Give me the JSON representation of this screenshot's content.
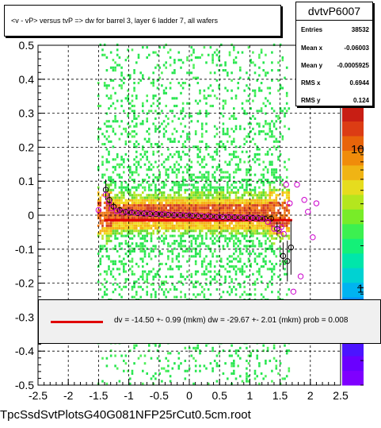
{
  "title": "<v - vP>     versus  tvP =>  dw for barrel 3, layer 6 ladder 7, all wafers",
  "stats": {
    "name": "dvtvP6007",
    "rows": [
      {
        "label": "Entries",
        "value": "38532"
      },
      {
        "label": "Mean x",
        "value": "-0.06003"
      },
      {
        "label": "Mean y",
        "value": "-0.0005925"
      },
      {
        "label": "RMS x",
        "value": "0.6944"
      },
      {
        "label": "RMS y",
        "value": "0.124"
      }
    ]
  },
  "fit_label": "dv =  -14.50 +-  0.99 (mkm) dw =  -29.67 +-  2.01 (mkm) prob = 0.008",
  "footer": "TpcSsdSvtPlotsG40G081NFP25rCut0.5cm.root",
  "colors": {
    "fit": "#e00000",
    "profile_black": "#000000",
    "profile_magenta": "#cc00cc"
  },
  "chart_data": {
    "type": "heatmap",
    "xlim": [
      -2.5,
      2.5
    ],
    "ylim": [
      -0.5,
      0.5
    ],
    "x_ticks": [
      "-2.5",
      "-2",
      "-1.5",
      "-1",
      "-0.5",
      "0",
      "0.5",
      "1",
      "1.5",
      "2",
      "2.5"
    ],
    "y_ticks": [
      "-0.5",
      "-0.4",
      "-0.3",
      "-0.2",
      "-0.1",
      "0",
      "0.1",
      "0.2",
      "0.3",
      "0.4",
      "0.5"
    ],
    "grid": true,
    "z_scale": "log",
    "z_ticks": [
      {
        "label": "1",
        "value": 1
      },
      {
        "label": "10",
        "value": 10
      }
    ],
    "z_range": [
      0.2,
      20
    ],
    "fit": {
      "x": [
        -1.4,
        1.7
      ],
      "y": [
        -0.0145,
        -0.0145
      ]
    },
    "profile_black": {
      "x": [
        -1.38,
        -1.32,
        -1.25,
        -1.15,
        -1.05,
        -0.95,
        -0.85,
        -0.75,
        -0.65,
        -0.55,
        -0.45,
        -0.35,
        -0.25,
        -0.15,
        -0.05,
        0.05,
        0.15,
        0.25,
        0.35,
        0.45,
        0.55,
        0.65,
        0.75,
        0.85,
        0.95,
        1.05,
        1.15,
        1.25,
        1.35,
        1.45,
        1.55,
        1.62,
        1.68
      ],
      "y": [
        0.075,
        0.045,
        0.025,
        0.015,
        0.01,
        0.008,
        0.006,
        0.005,
        0.004,
        0.003,
        0.002,
        0.001,
        0.0,
        0.0,
        -0.001,
        -0.002,
        -0.003,
        -0.004,
        -0.004,
        -0.005,
        -0.005,
        -0.006,
        -0.006,
        -0.007,
        -0.008,
        -0.008,
        -0.009,
        -0.01,
        -0.01,
        -0.04,
        -0.12,
        -0.135,
        -0.095
      ],
      "err": [
        0.03,
        0.02,
        0.012,
        0.006,
        0.004,
        0.003,
        0.003,
        0.002,
        0.002,
        0.002,
        0.002,
        0.002,
        0.002,
        0.002,
        0.002,
        0.002,
        0.002,
        0.002,
        0.002,
        0.002,
        0.002,
        0.002,
        0.002,
        0.003,
        0.003,
        0.003,
        0.004,
        0.005,
        0.008,
        0.02,
        0.04,
        0.06,
        0.08
      ]
    },
    "profile_magenta": {
      "x": [
        -1.5,
        -1.38,
        -1.33,
        -1.28,
        -1.2,
        -1.1,
        -1.0,
        -0.9,
        -0.8,
        -0.7,
        -0.6,
        -0.5,
        -0.4,
        -0.3,
        -0.2,
        -0.1,
        0.0,
        0.1,
        0.2,
        0.3,
        0.4,
        0.5,
        0.6,
        0.7,
        0.8,
        0.9,
        1.0,
        1.1,
        1.2,
        1.3,
        1.4,
        1.48,
        1.52,
        1.56,
        1.6,
        1.66,
        1.72,
        1.78,
        1.84,
        1.9,
        1.96,
        2.04,
        2.1
      ],
      "y": [
        0.015,
        0.06,
        0.04,
        0.02,
        0.012,
        0.01,
        0.009,
        0.007,
        0.006,
        0.005,
        0.005,
        0.004,
        0.003,
        0.002,
        0.001,
        0.0,
        0.0,
        -0.001,
        -0.002,
        -0.003,
        -0.004,
        -0.005,
        -0.005,
        -0.006,
        -0.006,
        -0.007,
        -0.008,
        -0.008,
        -0.01,
        -0.02,
        -0.04,
        -0.045,
        -0.035,
        -0.055,
        0.09,
        0.035,
        -0.225,
        0.09,
        -0.18,
        0.045,
        0.01,
        -0.065,
        0.035
      ]
    }
  }
}
